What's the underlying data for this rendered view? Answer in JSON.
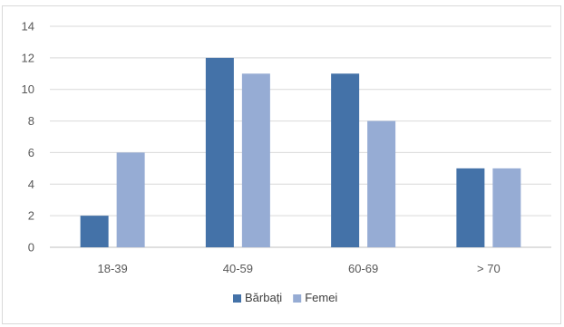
{
  "chart_data": {
    "type": "bar",
    "title": "",
    "xlabel": "",
    "ylabel": "",
    "categories": [
      "18-39",
      "40-59",
      "60-69",
      "> 70"
    ],
    "series": [
      {
        "name": "Bărbați",
        "values": [
          2,
          12,
          11,
          5
        ],
        "color": "#4472a8"
      },
      {
        "name": "Femei",
        "values": [
          6,
          11,
          8,
          5
        ],
        "color": "#96acd4"
      }
    ],
    "ylim": [
      0,
      14
    ],
    "yticks": [
      0,
      2,
      4,
      6,
      8,
      10,
      12,
      14
    ],
    "grid": true,
    "legend_position": "bottom",
    "gridline_color": "#d9d9d9",
    "axis_color": "#bfbfbf"
  }
}
